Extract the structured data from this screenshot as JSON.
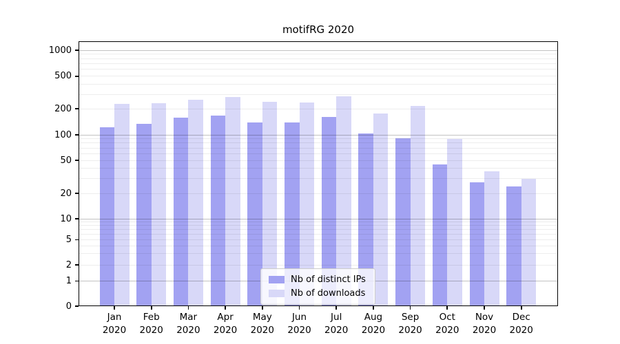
{
  "title": "motifRG 2020",
  "chart_data": {
    "type": "bar",
    "y_scale": "symlog",
    "grid": true,
    "legend_position": "lower center",
    "months": [
      "Jan",
      "Feb",
      "Mar",
      "Apr",
      "May",
      "Jun",
      "Jul",
      "Aug",
      "Sep",
      "Oct",
      "Nov",
      "Dec"
    ],
    "year_label": "2020",
    "y_ticks": [
      1000,
      500,
      200,
      100,
      50,
      20,
      10,
      5,
      2,
      1,
      0
    ],
    "ylim": [
      0,
      1200
    ],
    "series": [
      {
        "name": "Nb of distinct IPs",
        "color": "#a2a2f2",
        "values": [
          122,
          134,
          158,
          168,
          139,
          138,
          160,
          103,
          91,
          45,
          27,
          24
        ]
      },
      {
        "name": "Nb of downloads",
        "color": "#d8d8f8",
        "values": [
          230,
          236,
          256,
          278,
          243,
          241,
          282,
          177,
          216,
          90,
          37,
          30
        ]
      }
    ]
  }
}
